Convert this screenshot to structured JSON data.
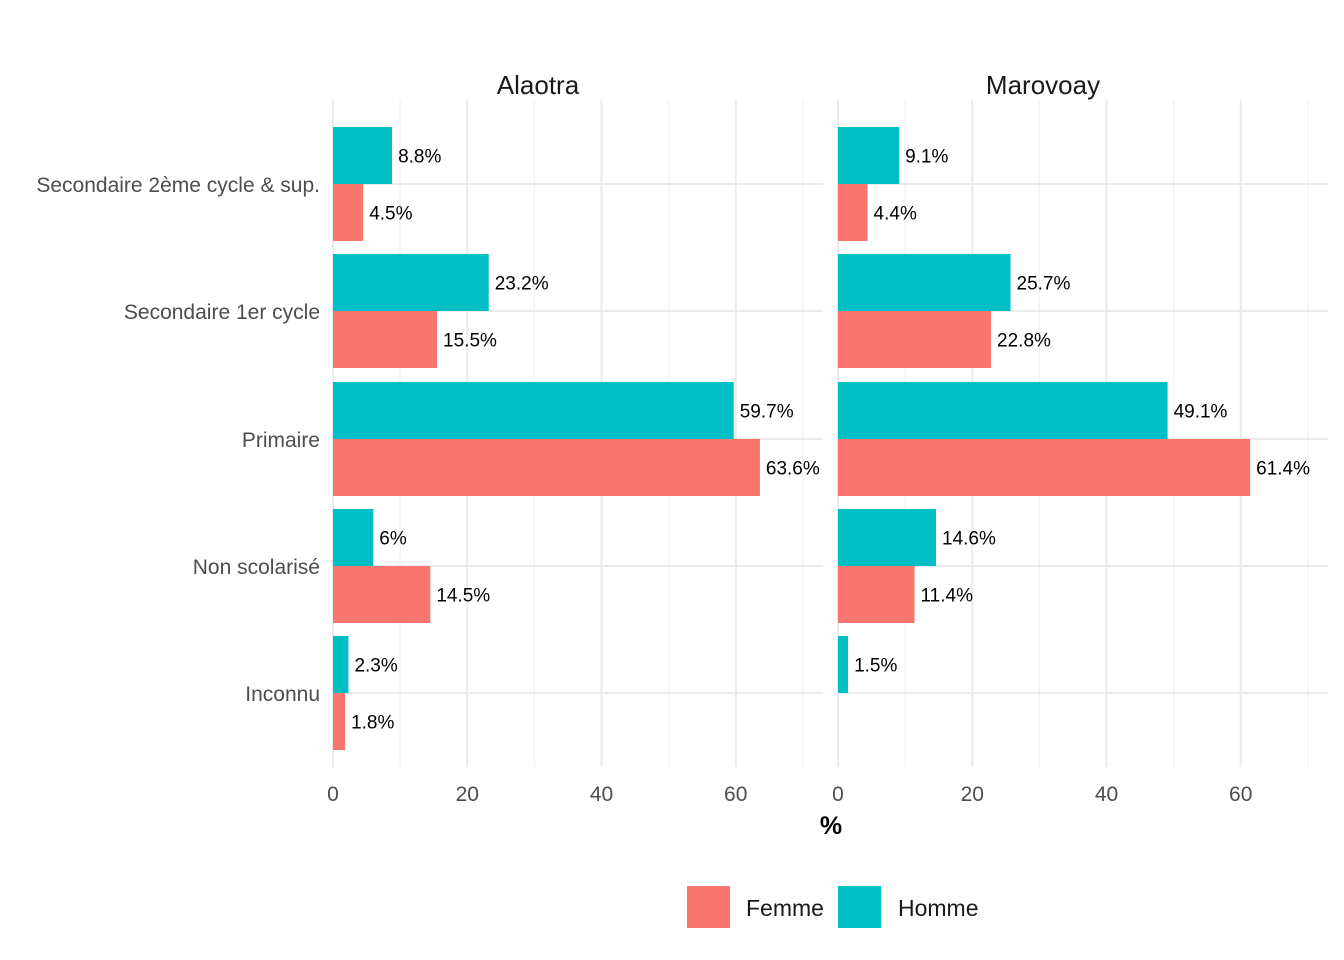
{
  "chart_data": {
    "type": "bar",
    "orientation": "horizontal",
    "xlabel": "%",
    "xlim": [
      0,
      73
    ],
    "xticks": [
      0,
      20,
      40,
      60
    ],
    "grid": true,
    "legend_position": "bottom",
    "categories": [
      "Secondaire 2ème cycle & sup.",
      "Secondaire 1er cycle",
      "Primaire",
      "Non scolarisé",
      "Inconnu"
    ],
    "series_names": [
      "Femme",
      "Homme"
    ],
    "colors": {
      "Femme": "#F8766D",
      "Homme": "#00BFC4"
    },
    "facets": [
      {
        "title": "Alaotra",
        "series": [
          {
            "name": "Homme",
            "values": [
              8.8,
              23.2,
              59.7,
              6,
              2.3
            ],
            "labels": [
              "8.8%",
              "23.2%",
              "59.7%",
              "6%",
              "2.3%"
            ]
          },
          {
            "name": "Femme",
            "values": [
              4.5,
              15.5,
              63.6,
              14.5,
              1.8
            ],
            "labels": [
              "4.5%",
              "15.5%",
              "63.6%",
              "14.5%",
              "1.8%"
            ]
          }
        ]
      },
      {
        "title": "Marovoay",
        "series": [
          {
            "name": "Homme",
            "values": [
              9.1,
              25.7,
              49.1,
              14.6,
              1.5
            ],
            "labels": [
              "9.1%",
              "25.7%",
              "49.1%",
              "14.6%",
              "1.5%"
            ]
          },
          {
            "name": "Femme",
            "values": [
              4.4,
              22.8,
              61.4,
              11.4,
              null
            ],
            "labels": [
              "4.4%",
              "22.8%",
              "61.4%",
              "11.4%",
              ""
            ]
          }
        ]
      }
    ]
  }
}
